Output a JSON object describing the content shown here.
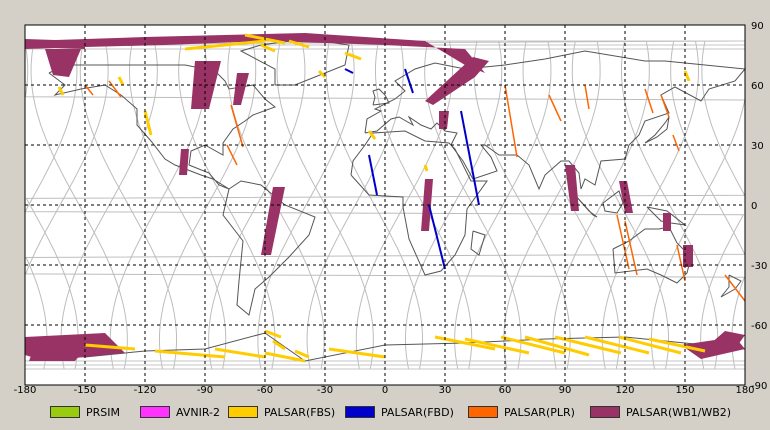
{
  "x_ticks": [
    "-180",
    "-150",
    "-120",
    "-90",
    "-60",
    "-30",
    "0",
    "30",
    "60",
    "90",
    "120",
    "150",
    "180"
  ],
  "y_ticks": [
    "90",
    "60",
    "30",
    "0",
    "-30",
    "-60",
    "-90"
  ],
  "legend": [
    {
      "label": "PRSIM",
      "color": "#99cc11"
    },
    {
      "label": "AVNIR-2",
      "color": "#ff33ff"
    },
    {
      "label": "PALSAR(FBS)",
      "color": "#ffcc00"
    },
    {
      "label": "PALSAR(FBD)",
      "color": "#0000cc"
    },
    {
      "label": "PALSAR(PLR)",
      "color": "#ff6600"
    },
    {
      "label": "PALSAR(WB1/WB2)",
      "color": "#993366"
    }
  ],
  "colors": {
    "grid": "#000000",
    "orbit": "#b8b8b8",
    "land": "#333333",
    "map_bg": "#ffffff"
  }
}
